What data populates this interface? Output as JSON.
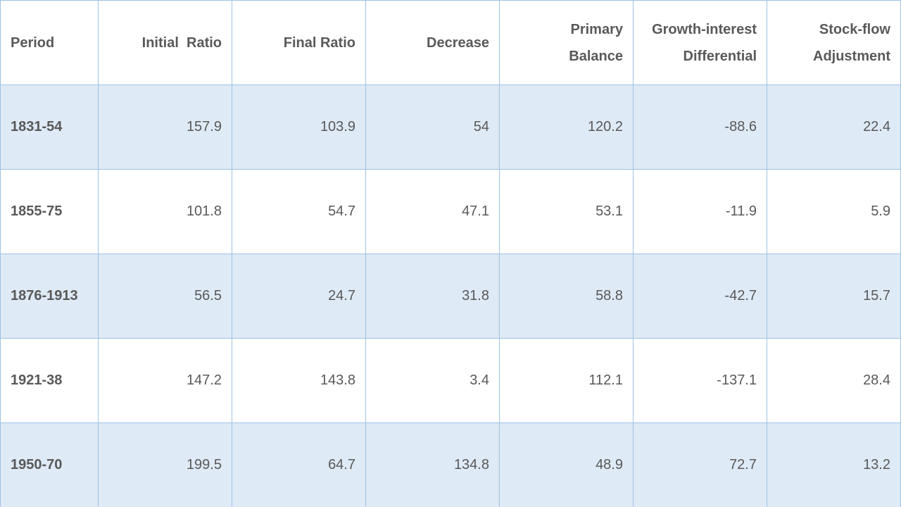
{
  "chart_data": {
    "type": "table",
    "columns": [
      "Period",
      "Initial  Ratio",
      "Final Ratio",
      "Decrease",
      "Primary Balance",
      "Growth-interest Differential",
      "Stock-flow Adjustment"
    ],
    "header_lines": [
      [
        "Period"
      ],
      [
        "Initial  Ratio"
      ],
      [
        "Final Ratio"
      ],
      [
        "Decrease"
      ],
      [
        "Primary",
        "Balance"
      ],
      [
        "Growth-interest",
        "Differential"
      ],
      [
        "Stock-flow",
        "Adjustment"
      ]
    ],
    "rows": [
      [
        "1831-54",
        "157.9",
        "103.9",
        "54",
        "120.2",
        "-88.6",
        "22.4"
      ],
      [
        "1855-75",
        "101.8",
        "54.7",
        "47.1",
        "53.1",
        "-11.9",
        "5.9"
      ],
      [
        "1876-1913",
        "56.5",
        "24.7",
        "31.8",
        "58.8",
        "-42.7",
        "15.7"
      ],
      [
        "1921-38",
        "147.2",
        "143.8",
        "3.4",
        "112.1",
        "-137.1",
        "28.4"
      ],
      [
        "1950-70",
        "199.5",
        "64.7",
        "134.8",
        "48.9",
        "72.7",
        "13.2"
      ]
    ],
    "colors": {
      "border": "#9dc3e6",
      "shaded_row": "#deeaf6",
      "text": "#595959"
    }
  }
}
